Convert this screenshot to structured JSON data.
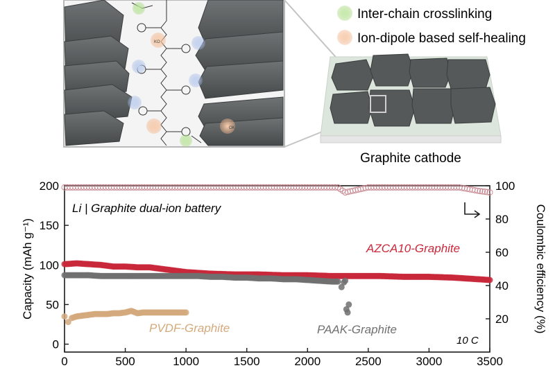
{
  "illustration": {
    "legend": [
      {
        "label": "Inter-chain crosslinking",
        "color": "#a8d880"
      },
      {
        "label": "Ion-dipole based self-healing",
        "color": "#f2b48c"
      }
    ],
    "caption": "Graphite cathode",
    "chem_labels": [
      "KO",
      "OK"
    ],
    "graphite_color": "#55595a",
    "binder_color": "#c9ddc8"
  },
  "chart_data": {
    "type": "scatter",
    "title": "Li | Graphite dual-ion battery",
    "rate_label": "10 C",
    "xlabel": "",
    "ylabel": "Capacity (mAh g⁻¹)",
    "y2label": "Coulombic efficiency (%)",
    "xlim": [
      0,
      3500
    ],
    "ylim": [
      -10,
      200
    ],
    "y2lim": [
      0,
      100
    ],
    "x_ticks": [
      "0",
      "500",
      "1000",
      "1500",
      "2000",
      "2500",
      "3000",
      "3500"
    ],
    "y_ticks": [
      "0",
      "50",
      "100",
      "150",
      "200"
    ],
    "y2_ticks": [
      "20",
      "40",
      "60",
      "80",
      "100"
    ],
    "series": [
      {
        "name": "AZCA10-Graphite",
        "color": "#c8283a",
        "axis": "left",
        "points": [
          [
            0,
            101
          ],
          [
            100,
            102
          ],
          [
            200,
            101
          ],
          [
            300,
            100
          ],
          [
            400,
            98
          ],
          [
            500,
            98
          ],
          [
            600,
            97
          ],
          [
            700,
            97
          ],
          [
            800,
            95
          ],
          [
            900,
            93
          ],
          [
            1000,
            91
          ],
          [
            1100,
            90
          ],
          [
            1200,
            89
          ],
          [
            1400,
            88
          ],
          [
            1600,
            88
          ],
          [
            1800,
            87
          ],
          [
            2000,
            87
          ],
          [
            2200,
            86
          ],
          [
            2400,
            86
          ],
          [
            2600,
            86
          ],
          [
            2800,
            85
          ],
          [
            3000,
            85
          ],
          [
            3200,
            84
          ],
          [
            3300,
            83
          ],
          [
            3400,
            82
          ],
          [
            3500,
            81
          ]
        ]
      },
      {
        "name": "PAAK-Graphite",
        "color": "#707070",
        "axis": "left",
        "points": [
          [
            0,
            87
          ],
          [
            100,
            87
          ],
          [
            200,
            87
          ],
          [
            300,
            86
          ],
          [
            400,
            86
          ],
          [
            500,
            86
          ],
          [
            600,
            86
          ],
          [
            700,
            86
          ],
          [
            800,
            86
          ],
          [
            900,
            86
          ],
          [
            1000,
            86
          ],
          [
            1100,
            86
          ],
          [
            1200,
            85
          ],
          [
            1300,
            85
          ],
          [
            1400,
            84
          ],
          [
            1500,
            84
          ],
          [
            1600,
            83
          ],
          [
            1700,
            83
          ],
          [
            1800,
            82
          ],
          [
            1900,
            82
          ],
          [
            2000,
            81
          ],
          [
            2100,
            80
          ],
          [
            2200,
            79
          ],
          [
            2250,
            79
          ],
          [
            2280,
            72
          ],
          [
            2300,
            78
          ],
          [
            2310,
            80
          ],
          [
            2320,
            44
          ],
          [
            2330,
            40
          ],
          [
            2340,
            50
          ]
        ]
      },
      {
        "name": "PVDF-Graphite",
        "color": "#d4a97c",
        "axis": "left",
        "points": [
          [
            0,
            35
          ],
          [
            30,
            28
          ],
          [
            60,
            33
          ],
          [
            100,
            35
          ],
          [
            150,
            36
          ],
          [
            200,
            37
          ],
          [
            250,
            38
          ],
          [
            300,
            38
          ],
          [
            350,
            38
          ],
          [
            400,
            39
          ],
          [
            450,
            39
          ],
          [
            500,
            40
          ],
          [
            550,
            42
          ],
          [
            600,
            39
          ],
          [
            650,
            40
          ],
          [
            700,
            40
          ],
          [
            750,
            40
          ],
          [
            800,
            40
          ],
          [
            850,
            40
          ],
          [
            900,
            40
          ],
          [
            950,
            40
          ],
          [
            1000,
            40
          ]
        ]
      },
      {
        "name": "",
        "color": "#c88a92",
        "axis": "right",
        "points": [
          [
            0,
            99
          ],
          [
            250,
            99
          ],
          [
            500,
            99
          ],
          [
            750,
            99
          ],
          [
            1000,
            99
          ],
          [
            1250,
            99
          ],
          [
            1500,
            99
          ],
          [
            1750,
            99
          ],
          [
            2000,
            99
          ],
          [
            2250,
            99
          ],
          [
            2310,
            96
          ],
          [
            2500,
            99
          ],
          [
            2750,
            99
          ],
          [
            3000,
            99
          ],
          [
            3250,
            99
          ],
          [
            3400,
            97
          ],
          [
            3500,
            96
          ]
        ]
      }
    ]
  }
}
